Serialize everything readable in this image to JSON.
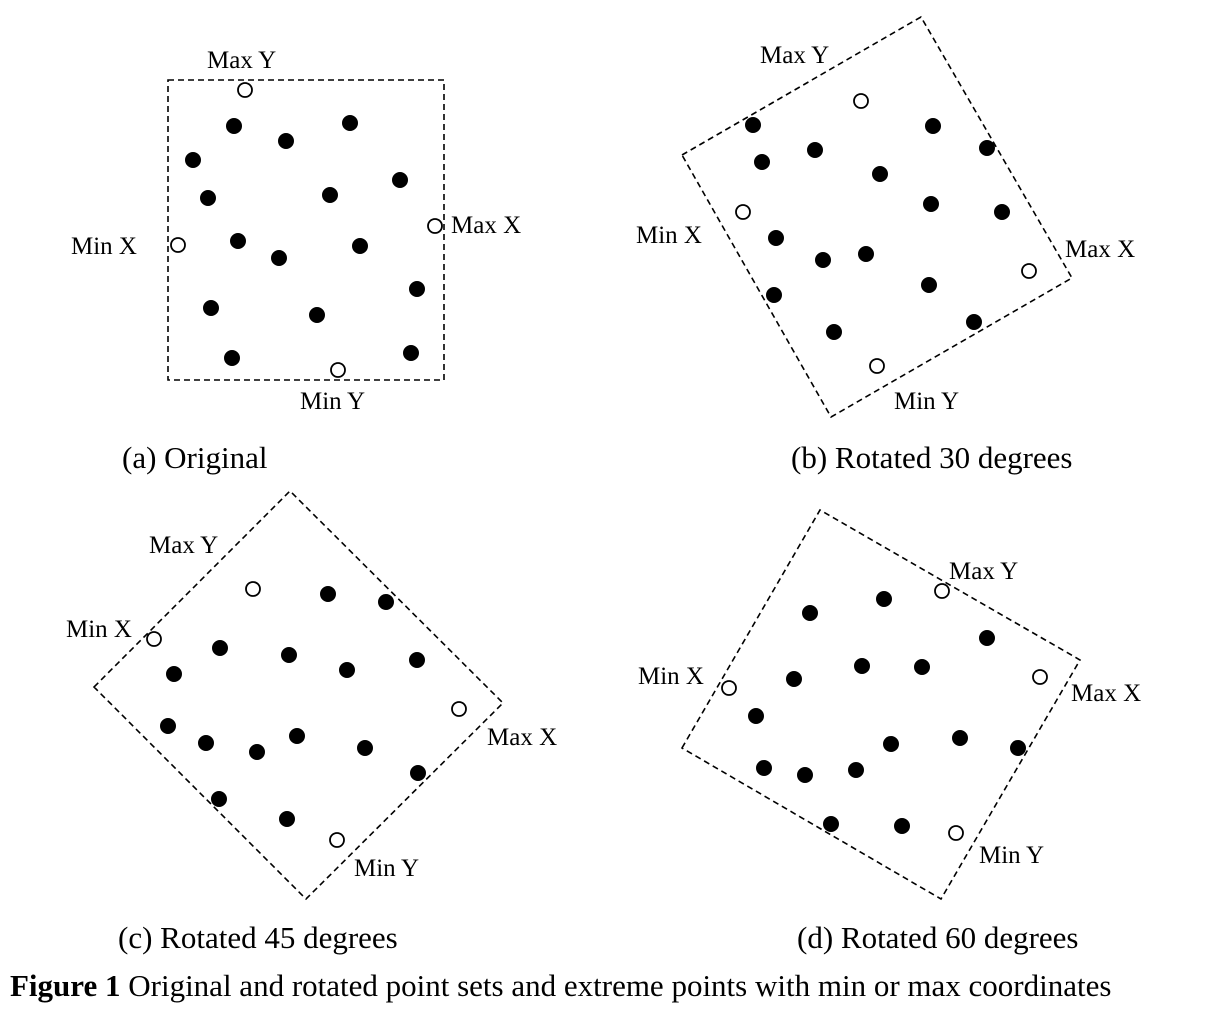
{
  "panels": [
    {
      "id": "a",
      "caption": "(a) Original",
      "labels": {
        "max_y": "Max Y",
        "min_x": "Min X",
        "max_x": "Max X",
        "min_y": "Min Y"
      }
    },
    {
      "id": "b",
      "caption": "(b) Rotated 30 degrees",
      "labels": {
        "max_y": "Max Y",
        "min_x": "Min X",
        "max_x": "Max X",
        "min_y": "Min Y"
      }
    },
    {
      "id": "c",
      "caption": "(c) Rotated 45 degrees",
      "labels": {
        "max_y": "Max Y",
        "min_x": "Min X",
        "max_x": "Max X",
        "min_y": "Min Y"
      }
    },
    {
      "id": "d",
      "caption": "(d) Rotated 60 degrees",
      "labels": {
        "max_y": "Max Y",
        "min_x": "Min X",
        "max_x": "Max X",
        "min_y": "Min Y"
      }
    }
  ],
  "figure_caption": {
    "number": "Figure 1",
    "text": " Original and rotated point sets and extreme points with min or max coordinates"
  },
  "colors": {
    "ink": "#000000",
    "background": "#ffffff"
  }
}
